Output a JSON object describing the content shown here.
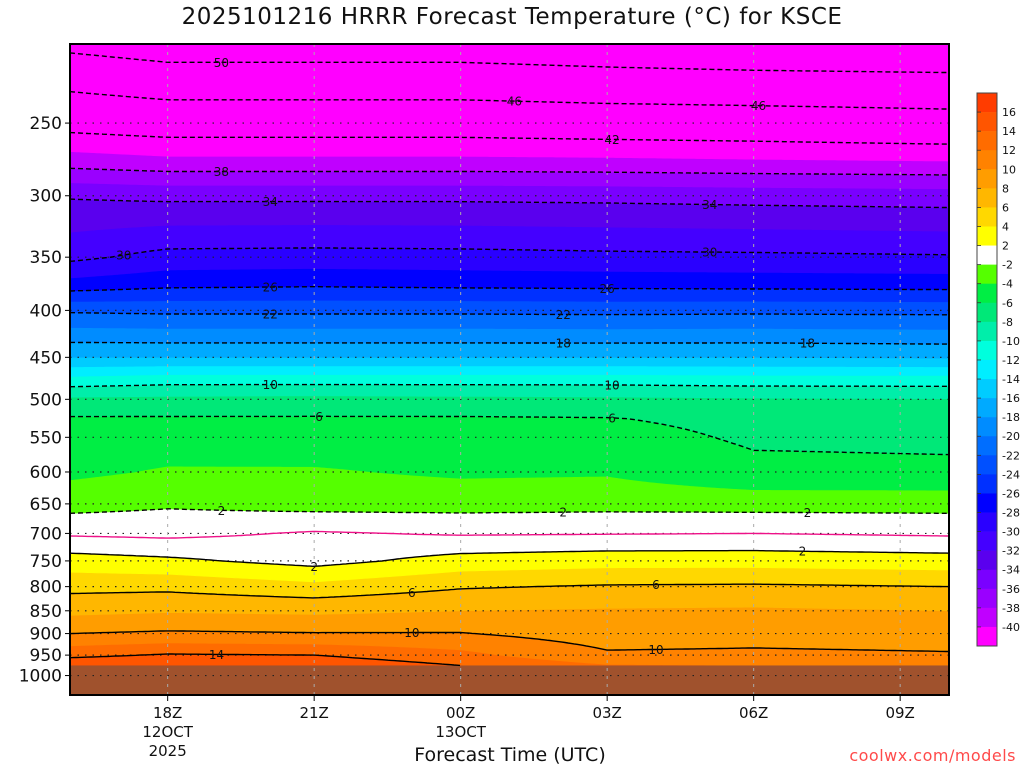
{
  "title": "2025101216 HRRR Forecast Temperature (°C) for KSCE",
  "watermark": "coolwx.com/models",
  "chart_data": {
    "type": "heatmap",
    "subtype": "filled-contour time-pressure cross section",
    "title": "2025101216 HRRR Forecast Temperature (°C) for KSCE",
    "xlabel": "Forecast Time (UTC)",
    "ylabel": "",
    "xlim": [
      16,
      34
    ],
    "ylim": [
      205,
      1050
    ],
    "y_scale": "log",
    "y_ticks": [
      250,
      300,
      350,
      400,
      450,
      500,
      550,
      600,
      650,
      700,
      750,
      800,
      850,
      900,
      950,
      1000
    ],
    "x_ticks": [
      {
        "hour": 18,
        "lines": [
          "18Z",
          "12OCT",
          "2025"
        ]
      },
      {
        "hour": 21,
        "lines": [
          "21Z"
        ]
      },
      {
        "hour": 24,
        "lines": [
          "00Z",
          "13OCT"
        ]
      },
      {
        "hour": 27,
        "lines": [
          "03Z"
        ]
      },
      {
        "hour": 30,
        "lines": [
          "06Z"
        ]
      },
      {
        "hour": 33,
        "lines": [
          "09Z"
        ]
      }
    ],
    "surface_pressure": 975,
    "ground_color": "#a0522d",
    "levels_hpa": [
      975,
      950,
      900,
      850,
      800,
      750,
      700,
      650,
      600,
      550,
      525,
      500,
      475,
      450,
      400,
      375,
      350,
      300,
      275,
      250,
      225,
      200
    ],
    "times_hour": [
      16,
      18,
      21,
      24,
      27,
      30,
      34
    ],
    "temperature_c": [
      [
        15.5,
        13.5,
        10.0,
        7.5,
        5.4,
        2.9,
        -0.3,
        -2.8,
        -4.4,
        -5.1,
        -5.8,
        -7.6,
        -11.5,
        -16.0,
        -22.3,
        -27.2,
        -30.5,
        -34.2,
        -39.0,
        -43.0,
        -47.0,
        -52.0
      ],
      [
        15.8,
        14.2,
        10.3,
        7.8,
        5.5,
        2.4,
        -0.5,
        -2.3,
        -3.8,
        -5.0,
        -5.8,
        -7.5,
        -11.0,
        -16.0,
        -22.5,
        -26.5,
        -29.3,
        -34.5,
        -39.5,
        -43.5,
        -48.0,
        -53.0
      ],
      [
        15.5,
        14.0,
        10.1,
        7.6,
        4.6,
        1.3,
        0.2,
        -2.8,
        -3.8,
        -5.1,
        -5.8,
        -7.4,
        -11.0,
        -16.0,
        -22.5,
        -26.3,
        -29.2,
        -34.5,
        -39.5,
        -43.5,
        -48.0,
        -53.0
      ],
      [
        14.0,
        12.6,
        10.1,
        8.0,
        5.8,
        2.8,
        -0.2,
        -2.8,
        -4.3,
        -5.1,
        -5.8,
        -7.5,
        -11.0,
        -16.0,
        -22.5,
        -26.5,
        -29.3,
        -34.5,
        -39.5,
        -43.5,
        -48.0,
        -53.0
      ],
      [
        12.2,
        10.3,
        9.0,
        8.2,
        6.2,
        3.2,
        -0.1,
        -2.7,
        -4.2,
        -5.2,
        -5.9,
        -7.6,
        -11.0,
        -16.0,
        -22.6,
        -26.6,
        -29.5,
        -34.6,
        -39.6,
        -43.8,
        -48.5,
        -53.5
      ],
      [
        12.0,
        10.4,
        9.2,
        8.3,
        6.3,
        3.2,
        0.0,
        -2.8,
        -5.5,
        -6.3,
        -6.6,
        -7.8,
        -11.2,
        -16.0,
        -22.5,
        -26.7,
        -29.6,
        -34.8,
        -39.8,
        -44.0,
        -48.8,
        -54.0
      ],
      [
        11.8,
        10.2,
        9.0,
        8.0,
        6.0,
        2.9,
        -0.3,
        -2.8,
        -5.6,
        -6.4,
        -6.7,
        -7.9,
        -11.2,
        -16.2,
        -22.6,
        -26.8,
        -29.8,
        -35.0,
        -40.0,
        -44.5,
        -49.0,
        -54.5
      ]
    ],
    "contour_values": [
      -54,
      -50,
      -46,
      -42,
      -38,
      -34,
      -30,
      -26,
      -22,
      -18,
      -10,
      -6,
      -2,
      0,
      2,
      6,
      10,
      14
    ],
    "contour_labels": [
      {
        "hour": 19.1,
        "value": -50,
        "label": "50"
      },
      {
        "hour": 25.1,
        "value": -46,
        "label": "46"
      },
      {
        "hour": 30.1,
        "value": -46,
        "label": "46"
      },
      {
        "hour": 27.1,
        "value": -42,
        "label": "42"
      },
      {
        "hour": 19.1,
        "value": -38,
        "label": "38"
      },
      {
        "hour": 20.1,
        "value": -34,
        "label": "34"
      },
      {
        "hour": 29.1,
        "value": -34,
        "label": "34"
      },
      {
        "hour": 17.1,
        "value": -30,
        "label": "30"
      },
      {
        "hour": 29.1,
        "value": -30,
        "label": "30"
      },
      {
        "hour": 20.1,
        "value": -26,
        "label": "26"
      },
      {
        "hour": 27.0,
        "value": -26,
        "label": "26"
      },
      {
        "hour": 20.1,
        "value": -22,
        "label": "22"
      },
      {
        "hour": 26.1,
        "value": -22,
        "label": "22"
      },
      {
        "hour": 26.1,
        "value": -18,
        "label": "18"
      },
      {
        "hour": 31.1,
        "value": -18,
        "label": "18"
      },
      {
        "hour": 20.1,
        "value": -10,
        "label": "10"
      },
      {
        "hour": 27.1,
        "value": -10,
        "label": "10"
      },
      {
        "hour": 21.1,
        "value": -6,
        "label": "6"
      },
      {
        "hour": 27.1,
        "value": -6,
        "label": "6"
      },
      {
        "hour": 19.1,
        "value": -2,
        "label": "2"
      },
      {
        "hour": 26.1,
        "value": -2,
        "label": "2"
      },
      {
        "hour": 31.1,
        "value": -2,
        "label": "2"
      },
      {
        "hour": 21.0,
        "value": 2,
        "label": "2"
      },
      {
        "hour": 31.0,
        "value": 2,
        "label": "2"
      },
      {
        "hour": 23.0,
        "value": 6,
        "label": "6"
      },
      {
        "hour": 28.0,
        "value": 6,
        "label": "6"
      },
      {
        "hour": 23.0,
        "value": 10,
        "label": "10"
      },
      {
        "hour": 28.0,
        "value": 10,
        "label": "10"
      },
      {
        "hour": 19.0,
        "value": 14,
        "label": "14"
      }
    ],
    "colorbar": {
      "labels": [
        "16",
        "14",
        "12",
        "10",
        "8",
        "6",
        "4",
        "2",
        "-2",
        "-4",
        "-6",
        "-8",
        "-10",
        "-12",
        "-14",
        "-16",
        "-18",
        "-20",
        "-22",
        "-24",
        "-26",
        "-28",
        "-30",
        "-32",
        "-34",
        "-36",
        "-38",
        "-40"
      ],
      "bands": [
        {
          "lo": 16,
          "hi": 99,
          "color": "#ff3c00"
        },
        {
          "lo": 14,
          "hi": 16,
          "color": "#ff5500"
        },
        {
          "lo": 12,
          "hi": 14,
          "color": "#ff6c00"
        },
        {
          "lo": 10,
          "hi": 12,
          "color": "#ff8200"
        },
        {
          "lo": 8,
          "hi": 10,
          "color": "#ff9d00"
        },
        {
          "lo": 6,
          "hi": 8,
          "color": "#ffb700"
        },
        {
          "lo": 4,
          "hi": 6,
          "color": "#ffd800"
        },
        {
          "lo": 2,
          "hi": 4,
          "color": "#ffff00"
        },
        {
          "lo": -2,
          "hi": 2,
          "color": "#ffffff"
        },
        {
          "lo": -4,
          "hi": -2,
          "color": "#55ff00"
        },
        {
          "lo": -6,
          "hi": -4,
          "color": "#00ee44"
        },
        {
          "lo": -8,
          "hi": -6,
          "color": "#00e878"
        },
        {
          "lo": -10,
          "hi": -8,
          "color": "#00eeaa"
        },
        {
          "lo": -12,
          "hi": -10,
          "color": "#00ffdd"
        },
        {
          "lo": -14,
          "hi": -12,
          "color": "#00eeff"
        },
        {
          "lo": -16,
          "hi": -14,
          "color": "#00ccff"
        },
        {
          "lo": -18,
          "hi": -16,
          "color": "#00aaff"
        },
        {
          "lo": -20,
          "hi": -18,
          "color": "#008cff"
        },
        {
          "lo": -22,
          "hi": -20,
          "color": "#006eff"
        },
        {
          "lo": -24,
          "hi": -22,
          "color": "#0050ff"
        },
        {
          "lo": -26,
          "hi": -24,
          "color": "#0030ff"
        },
        {
          "lo": -28,
          "hi": -26,
          "color": "#0000ff"
        },
        {
          "lo": -30,
          "hi": -28,
          "color": "#2a00ff"
        },
        {
          "lo": -32,
          "hi": -30,
          "color": "#4400ff"
        },
        {
          "lo": -34,
          "hi": -32,
          "color": "#5a00ee"
        },
        {
          "lo": -36,
          "hi": -34,
          "color": "#7a00ff"
        },
        {
          "lo": -38,
          "hi": -36,
          "color": "#9a00ff"
        },
        {
          "lo": -40,
          "hi": -38,
          "color": "#c000ff"
        },
        {
          "lo": -99,
          "hi": -40,
          "color": "#ff00ff"
        }
      ]
    }
  }
}
